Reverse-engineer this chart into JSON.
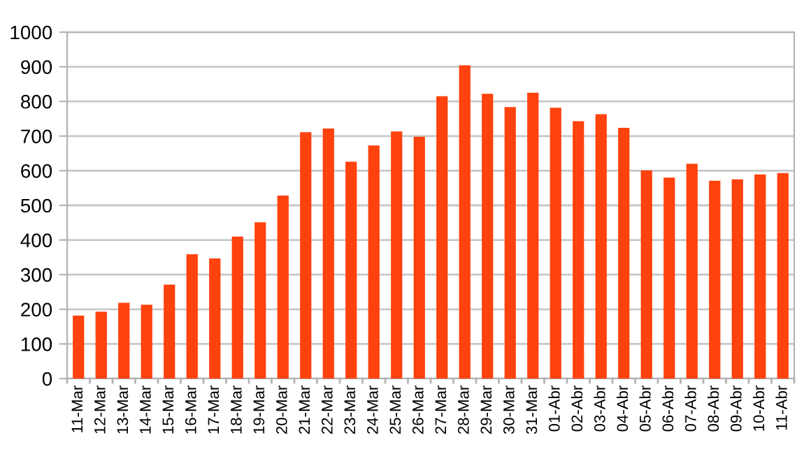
{
  "chart_data": {
    "type": "bar",
    "categories": [
      "11-Mar",
      "12-Mar",
      "13-Mar",
      "14-Mar",
      "15-Mar",
      "16-Mar",
      "17-Mar",
      "18-Mar",
      "19-Mar",
      "20-Mar",
      "21-Mar",
      "22-Mar",
      "23-Mar",
      "24-Mar",
      "25-Mar",
      "26-Mar",
      "27-Mar",
      "28-Mar",
      "29-Mar",
      "30-Mar",
      "31-Mar",
      "01-Abr",
      "02-Abr",
      "03-Abr",
      "04-Abr",
      "05-Abr",
      "06-Abr",
      "07-Abr",
      "08-Abr",
      "09-Abr",
      "10-Abr",
      "11-Abr"
    ],
    "values": [
      182,
      193,
      219,
      213,
      271,
      359,
      347,
      410,
      451,
      528,
      711,
      722,
      626,
      673,
      713,
      698,
      815,
      904,
      822,
      784,
      825,
      782,
      743,
      763,
      724,
      601,
      580,
      620,
      571,
      575,
      589,
      593
    ],
    "color": "#ff420e",
    "ylim": [
      0,
      1000
    ],
    "yticks": [
      0,
      100,
      200,
      300,
      400,
      500,
      600,
      700,
      800,
      900,
      1000
    ],
    "grid": "y",
    "legend": false
  }
}
